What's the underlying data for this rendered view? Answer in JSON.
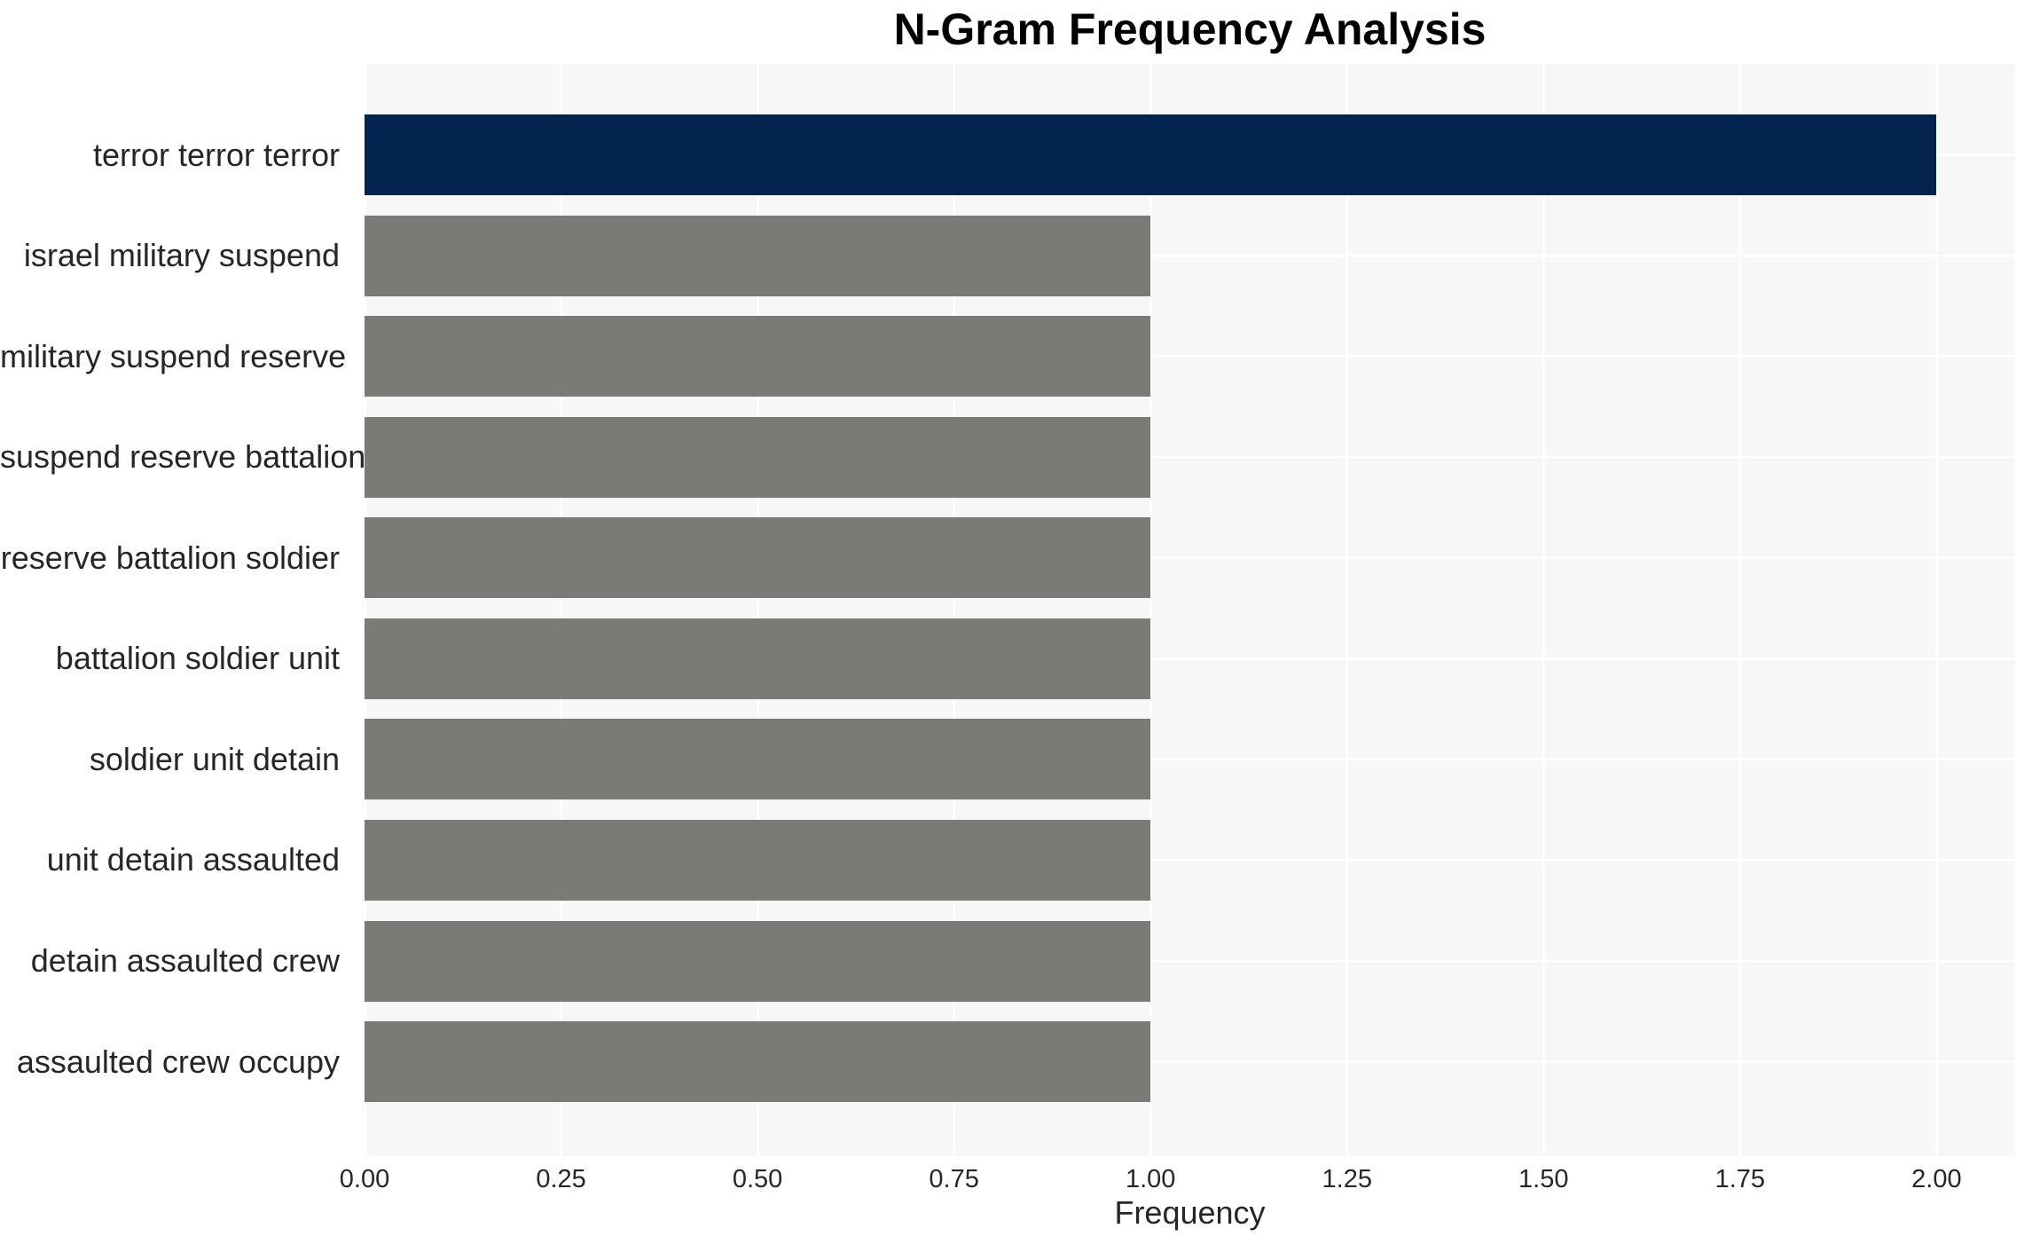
{
  "chart_data": {
    "type": "bar",
    "orientation": "horizontal",
    "title": "N-Gram Frequency Analysis",
    "xlabel": "Frequency",
    "ylabel": "",
    "categories": [
      "terror terror terror",
      "israel military suspend",
      "military suspend reserve",
      "suspend reserve battalion",
      "reserve battalion soldier",
      "battalion soldier unit",
      "soldier unit detain",
      "unit detain assaulted",
      "detain assaulted crew",
      "assaulted crew occupy"
    ],
    "values": [
      2.0,
      1.0,
      1.0,
      1.0,
      1.0,
      1.0,
      1.0,
      1.0,
      1.0,
      1.0
    ],
    "xlim": [
      0,
      2.1
    ],
    "xticks": [
      0.0,
      0.25,
      0.5,
      0.75,
      1.0,
      1.25,
      1.5,
      1.75,
      2.0
    ],
    "xtick_labels": [
      "0.00",
      "0.25",
      "0.50",
      "0.75",
      "1.00",
      "1.25",
      "1.50",
      "1.75",
      "2.00"
    ],
    "grid": true,
    "legend": false,
    "colors": {
      "highlight_bar": "#02244e",
      "default_bar": "#7b7a76",
      "plot_background": "#f7f7f7",
      "gridline": "#ffffff",
      "tick_text": "#262626",
      "title_text": "#000000"
    }
  }
}
